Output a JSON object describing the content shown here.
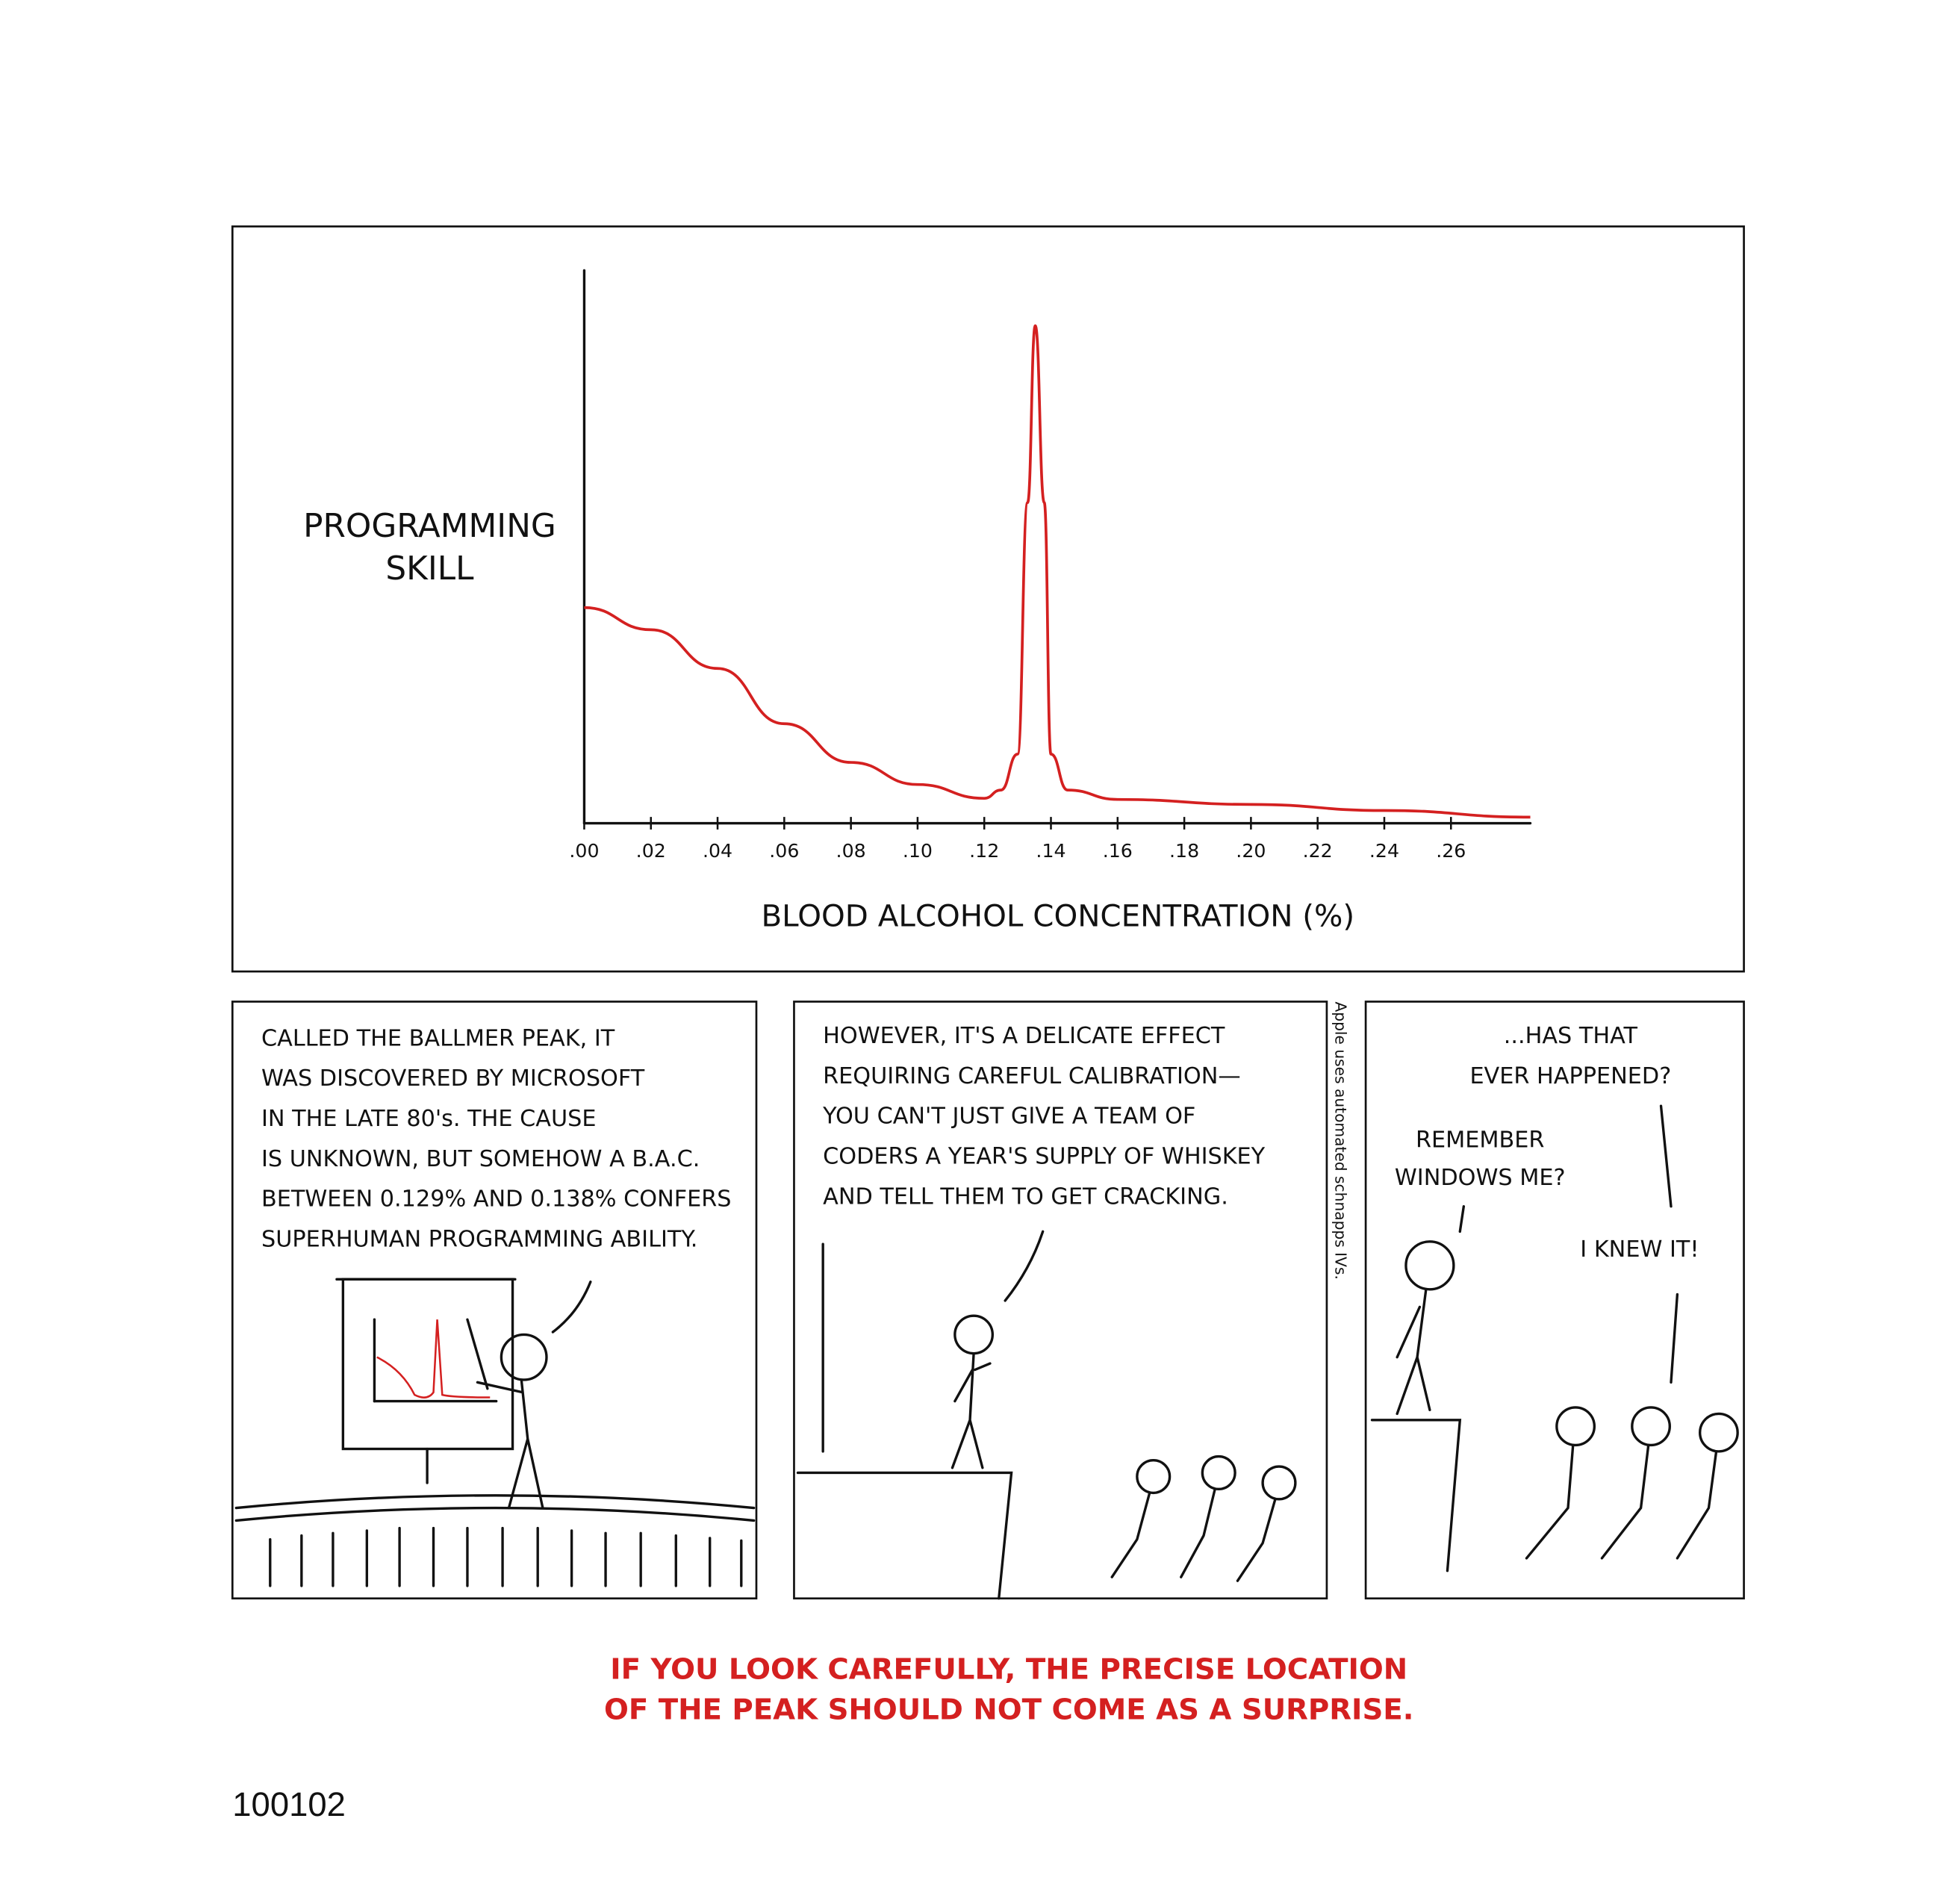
{
  "chart_data": {
    "type": "line",
    "ylabel": [
      "PROGRAMMING",
      "SKILL"
    ],
    "xlabel": "BLOOD ALCOHOL CONCENTRATION (%)",
    "x": [
      0,
      0.02,
      0.04,
      0.06,
      0.08,
      0.1,
      0.12,
      0.125,
      0.13,
      0.133,
      0.1353,
      0.138,
      0.14,
      0.145,
      0.16,
      0.2,
      0.24,
      0.2838
    ],
    "values": [
      39,
      35,
      28,
      18,
      11,
      7,
      4.5,
      6,
      12.5,
      58,
      90,
      58,
      12.5,
      6,
      4.3,
      3.4,
      2.3,
      1.1
    ],
    "color": "#d42020",
    "xlim": [
      0,
      0.2838
    ],
    "ylim": [
      0,
      100
    ],
    "xticks": [
      {
        "value": 0,
        "label": ".00"
      },
      {
        "value": 0.02,
        "label": ".02"
      },
      {
        "value": 0.04,
        "label": ".04"
      },
      {
        "value": 0.06,
        "label": ".06"
      },
      {
        "value": 0.08,
        "label": ".08"
      },
      {
        "value": 0.1,
        "label": ".10"
      },
      {
        "value": 0.12,
        "label": ".12"
      },
      {
        "value": 0.14,
        "label": ".14"
      },
      {
        "value": 0.16,
        "label": ".16"
      },
      {
        "value": 0.18,
        "label": ".18"
      },
      {
        "value": 0.2,
        "label": ".20"
      },
      {
        "value": 0.22,
        "label": ".22"
      },
      {
        "value": 0.24,
        "label": ".24"
      },
      {
        "value": 0.26,
        "label": ".26"
      }
    ]
  },
  "panels": [
    {
      "speech": [
        {
          "lines": [
            "CALLED THE BALLMER PEAK, IT",
            "WAS DISCOVERED BY MICROSOFT",
            "IN THE LATE 80's. THE CAUSE",
            "IS UNKNOWN, BUT SOMEHOW A B.A.C.",
            "BETWEEN 0.129% AND 0.138% CONFERS",
            "SUPERHUMAN PROGRAMMING ABILITY."
          ]
        }
      ]
    },
    {
      "speech": [
        {
          "lines": [
            "HOWEVER, IT'S A DELICATE EFFECT",
            "REQUIRING CAREFUL CALIBRATION—",
            "YOU CAN'T JUST GIVE A TEAM OF",
            "CODERS A YEAR'S SUPPLY OF WHISKEY",
            "AND TELL THEM TO GET CRACKING."
          ]
        }
      ]
    },
    {
      "speech": [
        {
          "lines": [
            "...HAS THAT",
            "EVER HAPPENED?"
          ]
        },
        {
          "lines": [
            "REMEMBER",
            "WINDOWS ME?"
          ]
        },
        {
          "lines": [
            "I KNEW IT!"
          ]
        }
      ]
    }
  ],
  "side_note": "Apple uses automated schnapps IVs.",
  "caption": [
    "IF YOU LOOK CAREFULLY, THE PRECISE LOCATION",
    "OF THE PEAK SHOULD NOT COME AS A SURPRISE."
  ],
  "footer": "100102"
}
